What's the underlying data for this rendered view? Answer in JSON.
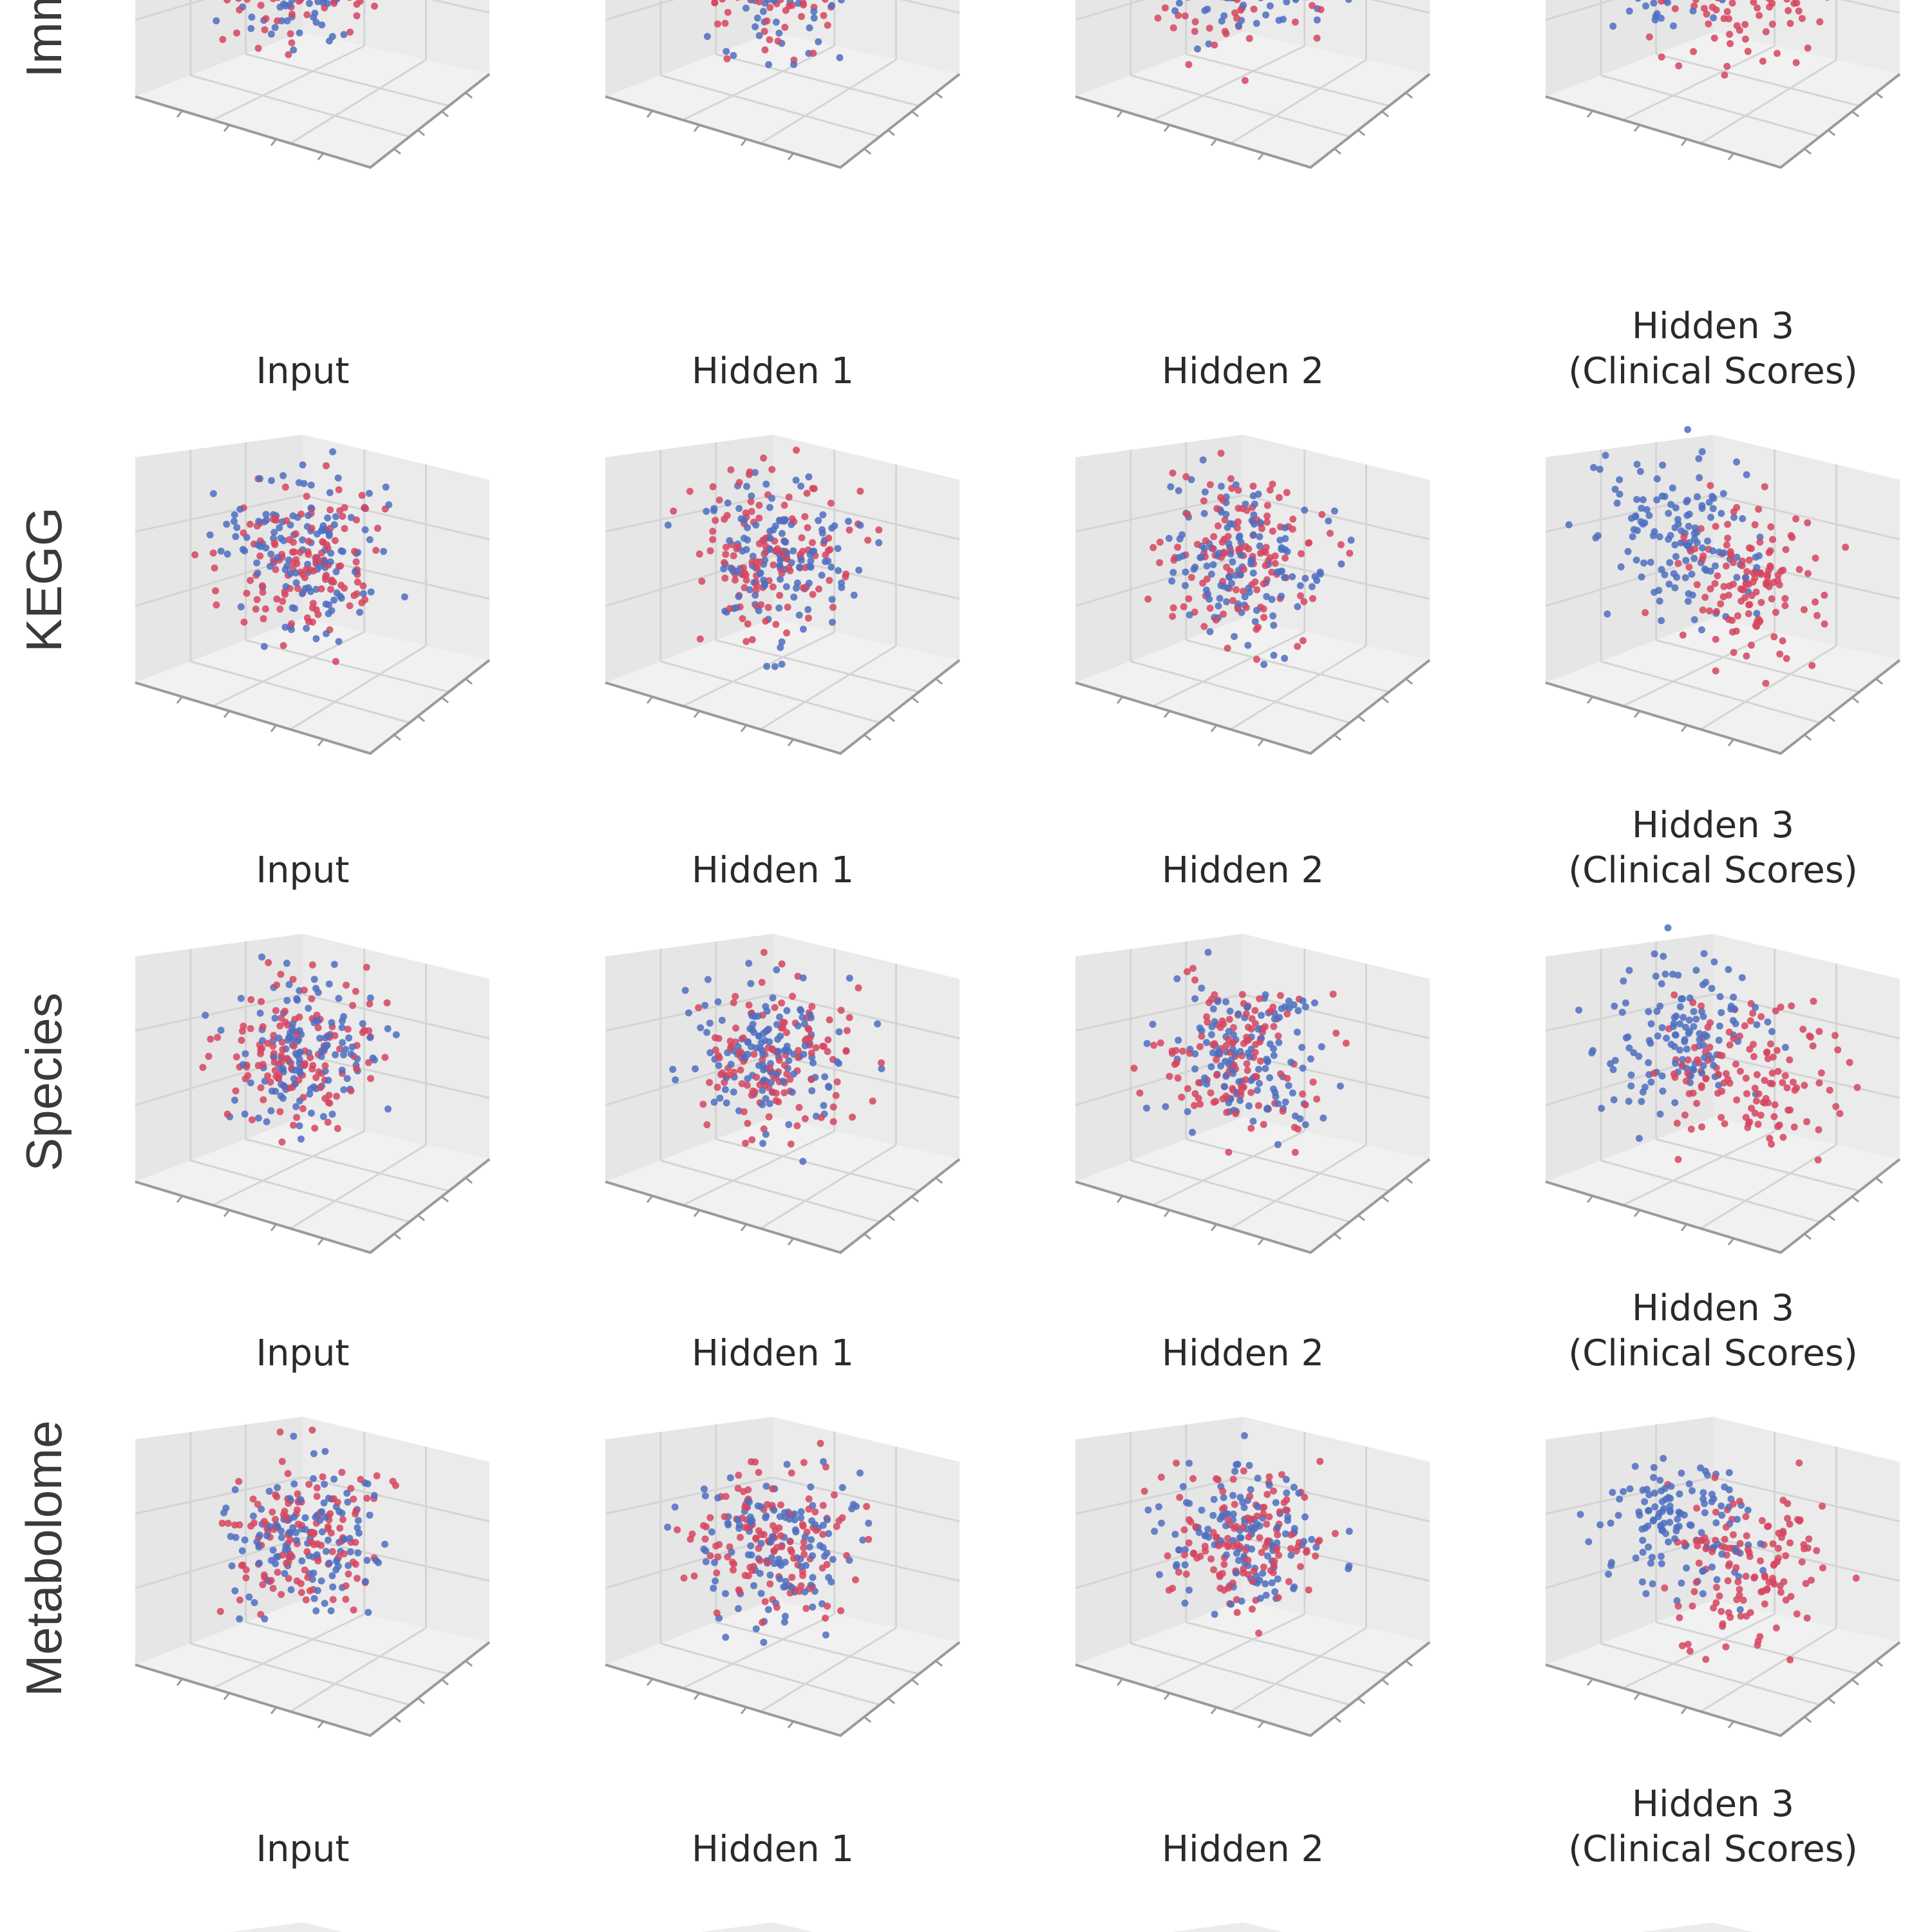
{
  "figure": {
    "rows": [
      {
        "label": "Immune"
      },
      {
        "label": "KEGG"
      },
      {
        "label": "Species"
      },
      {
        "label": "Metabolome"
      },
      {
        "label": ""
      }
    ],
    "columns": [
      {
        "title_lines": [
          "Input"
        ]
      },
      {
        "title_lines": [
          "Hidden 1"
        ]
      },
      {
        "title_lines": [
          "Hidden 2"
        ]
      },
      {
        "title_lines": [
          "Hidden 3",
          "(Clinical Scores)"
        ]
      }
    ],
    "colors": {
      "class_a": "#d6455f",
      "class_b": "#4d6fc0",
      "pane": "#ececec",
      "grid": "#d4d4d4",
      "edge": "#9a9a9a"
    }
  },
  "chart_data": [
    {
      "row": "Immune",
      "column": "Input",
      "type": "scatter",
      "dims": 3,
      "classes": [
        "red",
        "blue"
      ],
      "points_per_panel": 420,
      "separation": "mixed",
      "ticklabels": "none"
    },
    {
      "row": "Immune",
      "column": "Hidden 1",
      "type": "scatter",
      "dims": 3,
      "classes": [
        "red",
        "blue"
      ],
      "points_per_panel": 420,
      "separation": "mixed",
      "ticklabels": "none"
    },
    {
      "row": "Immune",
      "column": "Hidden 2",
      "type": "scatter",
      "dims": 3,
      "classes": [
        "red",
        "blue"
      ],
      "points_per_panel": 420,
      "separation": "mixed",
      "ticklabels": "none"
    },
    {
      "row": "Immune",
      "column": "Hidden 3 (Clinical Scores)",
      "type": "scatter",
      "dims": 3,
      "classes": [
        "red",
        "blue"
      ],
      "points_per_panel": 420,
      "separation": "partially separated",
      "ticklabels": "none"
    },
    {
      "row": "KEGG",
      "column": "Input",
      "type": "scatter",
      "dims": 3,
      "classes": [
        "red",
        "blue"
      ],
      "points_per_panel": 420,
      "separation": "mixed",
      "ticklabels": "none"
    },
    {
      "row": "KEGG",
      "column": "Hidden 1",
      "type": "scatter",
      "dims": 3,
      "classes": [
        "red",
        "blue"
      ],
      "points_per_panel": 420,
      "separation": "mixed",
      "ticklabels": "none"
    },
    {
      "row": "KEGG",
      "column": "Hidden 2",
      "type": "scatter",
      "dims": 3,
      "classes": [
        "red",
        "blue"
      ],
      "points_per_panel": 420,
      "separation": "mixed",
      "ticklabels": "none"
    },
    {
      "row": "KEGG",
      "column": "Hidden 3 (Clinical Scores)",
      "type": "scatter",
      "dims": 3,
      "classes": [
        "red",
        "blue"
      ],
      "points_per_panel": 420,
      "separation": "partially separated",
      "ticklabels": "none"
    },
    {
      "row": "Species",
      "column": "Input",
      "type": "scatter",
      "dims": 3,
      "classes": [
        "red",
        "blue"
      ],
      "points_per_panel": 420,
      "separation": "mixed",
      "ticklabels": "none"
    },
    {
      "row": "Species",
      "column": "Hidden 1",
      "type": "scatter",
      "dims": 3,
      "classes": [
        "red",
        "blue"
      ],
      "points_per_panel": 420,
      "separation": "mixed",
      "ticklabels": "none"
    },
    {
      "row": "Species",
      "column": "Hidden 2",
      "type": "scatter",
      "dims": 3,
      "classes": [
        "red",
        "blue"
      ],
      "points_per_panel": 420,
      "separation": "mixed",
      "ticklabels": "none"
    },
    {
      "row": "Species",
      "column": "Hidden 3 (Clinical Scores)",
      "type": "scatter",
      "dims": 3,
      "classes": [
        "red",
        "blue"
      ],
      "points_per_panel": 420,
      "separation": "partially separated",
      "ticklabels": "none"
    },
    {
      "row": "Metabolome",
      "column": "Input",
      "type": "scatter",
      "dims": 3,
      "classes": [
        "red",
        "blue"
      ],
      "points_per_panel": 420,
      "separation": "mixed",
      "ticklabels": "none"
    },
    {
      "row": "Metabolome",
      "column": "Hidden 1",
      "type": "scatter",
      "dims": 3,
      "classes": [
        "red",
        "blue"
      ],
      "points_per_panel": 420,
      "separation": "mixed",
      "ticklabels": "none"
    },
    {
      "row": "Metabolome",
      "column": "Hidden 2",
      "type": "scatter",
      "dims": 3,
      "classes": [
        "red",
        "blue"
      ],
      "points_per_panel": 420,
      "separation": "mixed",
      "ticklabels": "none"
    },
    {
      "row": "Metabolome",
      "column": "Hidden 3 (Clinical Scores)",
      "type": "scatter",
      "dims": 3,
      "classes": [
        "red",
        "blue"
      ],
      "points_per_panel": 420,
      "separation": "partially separated",
      "ticklabels": "none"
    }
  ]
}
